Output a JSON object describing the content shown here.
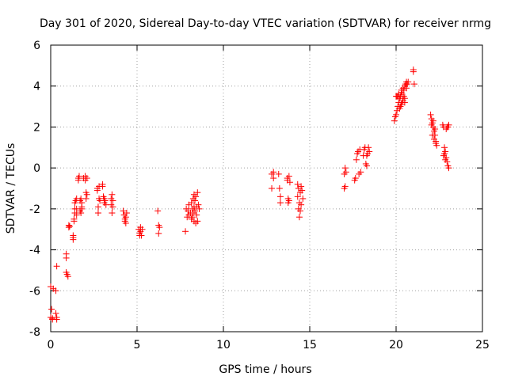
{
  "chart_data": {
    "type": "scatter",
    "title": "Day 301 of 2020, Sidereal Day-to-day VTEC variation (SDTVAR) for receiver nrmg",
    "xlabel": "GPS time / hours",
    "ylabel": "SDTVAR / TECUs",
    "xlim": [
      0,
      25
    ],
    "ylim": [
      -8,
      6
    ],
    "xticks": [
      0,
      5,
      10,
      15,
      20,
      25
    ],
    "yticks": [
      -8,
      -6,
      -4,
      -2,
      0,
      2,
      4,
      6
    ],
    "grid": true,
    "marker": "plus",
    "color": "#ff0000",
    "series": [
      {
        "name": "nrmg",
        "x": [
          0.0,
          0.0,
          0.05,
          0.1,
          0.1,
          0.15,
          0.3,
          0.3,
          0.35,
          0.35,
          0.35,
          0.9,
          0.9,
          0.9,
          0.95,
          1.0,
          1.05,
          1.05,
          1.1,
          1.3,
          1.3,
          1.3,
          1.35,
          1.35,
          1.4,
          1.4,
          1.4,
          1.45,
          1.5,
          1.5,
          1.5,
          1.6,
          1.6,
          1.65,
          1.7,
          1.7,
          1.75,
          1.75,
          1.8,
          1.8,
          1.8,
          1.9,
          2.0,
          2.0,
          2.05,
          2.05,
          2.1,
          2.1,
          2.7,
          2.7,
          2.75,
          2.75,
          2.8,
          2.8,
          2.85,
          3.0,
          3.0,
          3.05,
          3.1,
          3.1,
          3.15,
          3.2,
          3.5,
          3.5,
          3.55,
          3.55,
          3.6,
          3.6,
          4.2,
          4.25,
          4.3,
          4.3,
          4.35,
          4.35,
          4.4,
          5.1,
          5.15,
          5.15,
          5.2,
          5.2,
          5.25,
          5.3,
          6.2,
          6.25,
          6.25,
          6.3,
          7.8,
          7.85,
          7.9,
          7.95,
          8.0,
          8.0,
          8.1,
          8.15,
          8.15,
          8.2,
          8.2,
          8.25,
          8.25,
          8.3,
          8.3,
          8.3,
          8.35,
          8.35,
          8.4,
          8.4,
          8.45,
          8.45,
          8.5,
          8.5,
          8.55,
          8.6,
          12.8,
          12.8,
          12.9,
          12.9,
          13.2,
          13.25,
          13.3,
          13.3,
          13.7,
          13.7,
          13.75,
          13.75,
          13.8,
          13.8,
          13.85,
          14.3,
          14.3,
          14.35,
          14.35,
          14.4,
          14.4,
          14.45,
          14.45,
          14.5,
          14.5,
          14.55,
          14.6,
          17.0,
          17.0,
          17.05,
          17.05,
          17.1,
          17.6,
          17.65,
          17.7,
          17.75,
          17.8,
          17.85,
          17.9,
          17.95,
          18.1,
          18.15,
          18.2,
          18.25,
          18.3,
          18.3,
          18.35,
          18.4,
          18.45,
          19.9,
          19.95,
          20.0,
          20.0,
          20.05,
          20.05,
          20.1,
          20.1,
          20.15,
          20.15,
          20.2,
          20.25,
          20.3,
          20.3,
          20.35,
          20.4,
          20.45,
          20.5,
          20.5,
          20.55,
          20.6,
          20.6,
          20.65,
          20.7,
          20.2,
          20.25,
          20.3,
          20.35,
          20.4,
          20.45,
          20.5,
          21.0,
          21.0,
          21.05,
          22.0,
          22.05,
          22.1,
          22.1,
          22.15,
          22.2,
          22.2,
          22.25,
          22.3,
          22.3,
          22.35,
          22.05,
          22.15,
          22.25,
          22.7,
          22.75,
          22.8,
          22.85,
          22.9,
          22.95,
          23.0,
          23.05,
          22.75,
          22.8,
          22.85,
          22.9,
          22.95,
          23.0,
          23.05
        ],
        "y": [
          -5.8,
          -7.3,
          -6.9,
          -7.4,
          -7.35,
          -5.9,
          -6.0,
          -7.1,
          -7.3,
          -7.4,
          -4.8,
          -4.2,
          -4.4,
          -5.1,
          -5.2,
          -5.3,
          -2.8,
          -2.9,
          -2.85,
          -3.3,
          -3.4,
          -3.5,
          -2.5,
          -2.6,
          -1.7,
          -2.0,
          -2.2,
          -1.6,
          -2.0,
          -2.3,
          -1.5,
          -0.5,
          -0.6,
          -0.4,
          -1.6,
          -2.1,
          -1.5,
          -2.2,
          -1.9,
          -2.0,
          -1.7,
          -0.5,
          -0.4,
          -0.6,
          -1.2,
          -1.5,
          -0.5,
          -1.3,
          -1.0,
          -1.1,
          -1.9,
          -2.2,
          -1.5,
          -0.9,
          -1.6,
          -0.8,
          -0.9,
          -1.4,
          -1.7,
          -1.5,
          -1.6,
          -1.8,
          -1.5,
          -1.8,
          -2.2,
          -1.3,
          -1.6,
          -1.9,
          -2.1,
          -2.3,
          -2.5,
          -2.6,
          -2.4,
          -2.7,
          -2.2,
          -3.0,
          -3.2,
          -3.3,
          -2.9,
          -3.1,
          -3.3,
          -3.0,
          -2.1,
          -2.8,
          -3.2,
          -2.9,
          -3.1,
          -2.0,
          -2.4,
          -2.1,
          -1.8,
          -2.3,
          -2.2,
          -2.5,
          -1.7,
          -2.0,
          -2.4,
          -1.5,
          -2.2,
          -1.3,
          -2.6,
          -1.9,
          -2.1,
          -1.6,
          -2.7,
          -1.4,
          -1.9,
          -2.3,
          -1.2,
          -2.6,
          -1.8,
          -2.0,
          -0.3,
          -1.0,
          -0.2,
          -0.5,
          -0.3,
          -1.0,
          -1.4,
          -1.7,
          -0.5,
          -0.6,
          -1.5,
          -1.7,
          -0.4,
          -1.6,
          -0.7,
          -0.8,
          -1.4,
          -1.0,
          -2.0,
          -1.7,
          -2.4,
          -1.2,
          -2.1,
          -0.9,
          -1.8,
          -1.1,
          -1.5,
          -1.0,
          -0.3,
          -0.9,
          0.0,
          -0.2,
          -0.6,
          -0.5,
          0.4,
          0.7,
          0.8,
          -0.3,
          0.9,
          -0.2,
          0.6,
          0.9,
          1.0,
          0.2,
          0.6,
          0.1,
          0.7,
          1.0,
          0.8,
          2.3,
          2.5,
          2.6,
          3.5,
          2.8,
          3.5,
          3.0,
          3.5,
          3.2,
          3.6,
          3.4,
          3.5,
          3.7,
          3.8,
          3.6,
          3.9,
          3.8,
          4.0,
          3.4,
          4.1,
          3.9,
          4.2,
          4.1,
          4.2,
          2.9,
          3.0,
          3.1,
          3.2,
          3.3,
          3.5,
          3.2,
          4.8,
          4.7,
          4.1,
          2.6,
          2.4,
          2.2,
          1.6,
          2.0,
          1.8,
          1.4,
          1.6,
          1.3,
          1.2,
          1.1,
          2.1,
          2.3,
          1.9,
          2.1,
          2.0,
          1.0,
          0.8,
          0.5,
          0.3,
          0.1,
          0.0,
          0.6,
          0.7,
          0.4,
          1.9,
          2.0,
          2.0,
          2.1
        ]
      }
    ]
  }
}
